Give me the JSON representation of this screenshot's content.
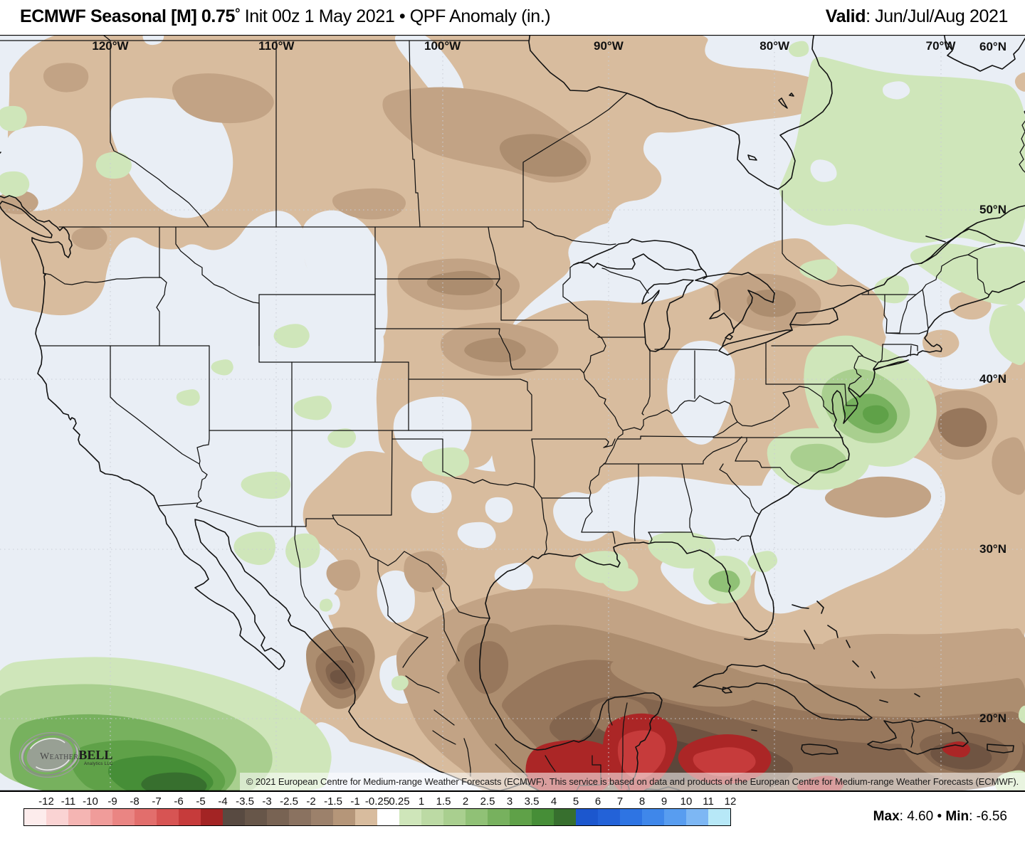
{
  "header": {
    "title_bold": "ECMWF Seasonal [M] 0.75",
    "title_degree": "°",
    "title_rest": " Init 00z 1 May 2021 • QPF Anomaly (in.)",
    "valid_label": "Valid",
    "valid_text": ": Jun/Jul/Aug 2021"
  },
  "map": {
    "lon_labels": [
      {
        "text": "120°W",
        "lon": -120
      },
      {
        "text": "110°W",
        "lon": -110
      },
      {
        "text": "100°W",
        "lon": -100
      },
      {
        "text": "90°W",
        "lon": -90
      },
      {
        "text": "80°W",
        "lon": -80
      },
      {
        "text": "70°W",
        "lon": -70
      }
    ],
    "lat_labels": [
      {
        "text": "60°N",
        "lat": 60
      },
      {
        "text": "50°N",
        "lat": 50
      },
      {
        "text": "40°N",
        "lat": 40
      },
      {
        "text": "30°N",
        "lat": 30
      },
      {
        "text": "20°N",
        "lat": 20
      }
    ]
  },
  "copyright": {
    "text": "© 2021 European Centre for Medium-range Weather Forecasts (ECMWF). This service is based on data and products of the European Centre for Medium-range Weather Forecasts (ECMWF)."
  },
  "logo": {
    "brand_light": "Weather",
    "brand_bold": "BELL",
    "subtext": "Analytics LLC"
  },
  "colorbar": {
    "tick_labels": [
      "-12",
      "-11",
      "-10",
      "-9",
      "-8",
      "-7",
      "-6",
      "-5",
      "-4",
      "-3.5",
      "-3",
      "-2.5",
      "-2",
      "-1.5",
      "-1",
      "-0.25",
      "0.25",
      "1",
      "1.5",
      "2",
      "2.5",
      "3",
      "3.5",
      "4",
      "5",
      "6",
      "7",
      "8",
      "9",
      "10",
      "11",
      "12"
    ],
    "segment_colors": [
      "#fdecec",
      "#fad3d3",
      "#f5b5b3",
      "#f09c9a",
      "#ea8583",
      "#e26e6c",
      "#d75453",
      "#c63b3b",
      "#a32424",
      "#584a41",
      "#675649",
      "#786353",
      "#8a7260",
      "#9c816b",
      "#b59679",
      "#d8bc9e",
      "#ffffff",
      "#cfe6ba",
      "#bcdaa4",
      "#a9cf8f",
      "#90c176",
      "#77b15e",
      "#5fa148",
      "#468e37",
      "#376f2e",
      "#1c57ce",
      "#2362d8",
      "#2e74e3",
      "#3f87ea",
      "#589df0",
      "#7db7f4",
      "#b7e8f7"
    ],
    "units": "in."
  },
  "footer": {
    "max_label": "Max",
    "max_value": ": 4.60",
    "separator": "•",
    "min_label": "Min",
    "min_value": ": -6.56"
  },
  "chart_data": {
    "type": "heatmap",
    "title": "ECMWF Seasonal [M] 0.75° Init 00z 1 May 2021 • QPF Anomaly (in.)",
    "valid": "Jun/Jul/Aug 2021",
    "region": "North America",
    "lon_ticks_deg_west": [
      120,
      110,
      100,
      90,
      80,
      70
    ],
    "lat_ticks_deg_north": [
      60,
      50,
      40,
      30,
      20
    ],
    "colorbar_ticks": [
      "-12",
      "-11",
      "-10",
      "-9",
      "-8",
      "-7",
      "-6",
      "-5",
      "-4",
      "-3.5",
      "-3",
      "-2.5",
      "-2",
      "-1.5",
      "-1",
      "-0.25",
      "0.25",
      "1",
      "1.5",
      "2",
      "2.5",
      "3",
      "3.5",
      "4",
      "5",
      "6",
      "7",
      "8",
      "9",
      "10",
      "11",
      "12"
    ],
    "colorbar_colors": [
      "#fdecec",
      "#fad3d3",
      "#f5b5b3",
      "#f09c9a",
      "#ea8583",
      "#e26e6c",
      "#d75453",
      "#c63b3b",
      "#a32424",
      "#584a41",
      "#675649",
      "#786353",
      "#8a7260",
      "#9c816b",
      "#b59679",
      "#d8bc9e",
      "#ffffff",
      "#cfe6ba",
      "#bcdaa4",
      "#a9cf8f",
      "#90c176",
      "#77b15e",
      "#5fa148",
      "#468e37",
      "#376f2e",
      "#1c57ce",
      "#2362d8",
      "#2e74e3",
      "#3f87ea",
      "#589df0",
      "#7db7f4",
      "#b7e8f7"
    ],
    "max": 4.6,
    "min": -6.56
  }
}
